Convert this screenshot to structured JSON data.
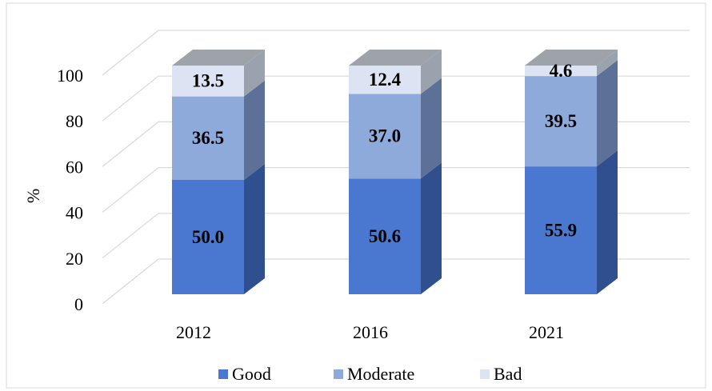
{
  "chart_data": {
    "type": "bar3d_stacked",
    "y_label": "%",
    "categories": [
      "2012",
      "2016",
      "2021"
    ],
    "series": [
      {
        "name": "Good",
        "color": "#4a78d0",
        "side_color": "#2f4f8f",
        "values": [
          50.0,
          50.6,
          55.9
        ],
        "value_labels": [
          "50.0",
          "50.6",
          "55.9"
        ]
      },
      {
        "name": "Moderate",
        "color": "#8eaadb",
        "side_color": "#5d7098",
        "values": [
          36.5,
          37.0,
          39.5
        ],
        "value_labels": [
          "36.5",
          "37.0",
          "39.5"
        ]
      },
      {
        "name": "Bad",
        "color": "#dce4f3",
        "side_color": "#9aa2ae",
        "values": [
          13.5,
          12.4,
          4.6
        ],
        "value_labels": [
          "13.5",
          "12.4",
          "4.6"
        ]
      }
    ],
    "top_color": "#9ea3aa",
    "ylim": [
      0,
      100
    ],
    "yticks": [
      0,
      20,
      40,
      60,
      80,
      100
    ],
    "grid": true
  }
}
